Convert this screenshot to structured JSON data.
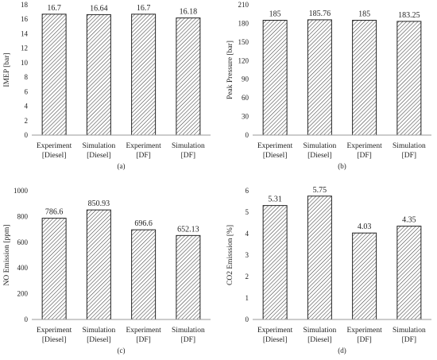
{
  "chart_data": [
    {
      "type": "bar",
      "panel_label": "(a)",
      "categories": [
        "Experiment [Diesel]",
        "Simulation [Diesel]",
        "Experiment [DF]",
        "Simulation [DF]"
      ],
      "values": [
        16.7,
        16.64,
        16.7,
        16.18
      ],
      "value_labels": [
        "16.7",
        "16.64",
        "16.7",
        "16.18"
      ],
      "ylabel": "IMEP [bar]",
      "ylim": [
        0,
        18
      ],
      "yticks": [
        0,
        2,
        4,
        6,
        8,
        10,
        12,
        14,
        16,
        18
      ],
      "grid": false,
      "fill": "diagonal-hatch"
    },
    {
      "type": "bar",
      "panel_label": "(b)",
      "categories": [
        "Experiment [Diesel]",
        "Simulation [Diesel]",
        "Experiment [DF]",
        "Simulation [DF]"
      ],
      "values": [
        185,
        185.76,
        185,
        183.25
      ],
      "value_labels": [
        "185",
        "185.76",
        "185",
        "183.25"
      ],
      "ylabel": "Peak Pressure [bar]",
      "ylim": [
        0,
        210
      ],
      "yticks": [
        0,
        30,
        60,
        90,
        120,
        150,
        180,
        210
      ],
      "grid": false,
      "fill": "diagonal-hatch"
    },
    {
      "type": "bar",
      "panel_label": "(c)",
      "categories": [
        "Experiment [Diesel]",
        "Simulation [Diesel]",
        "Experiment [DF]",
        "Simulation [DF]"
      ],
      "values": [
        786.6,
        850.93,
        696.6,
        652.13
      ],
      "value_labels": [
        "786.6",
        "850.93",
        "696.6",
        "652.13"
      ],
      "ylabel": "NO Emission [ppm]",
      "ylim": [
        0,
        1000
      ],
      "yticks": [
        0,
        200,
        400,
        600,
        800,
        1000
      ],
      "grid": false,
      "fill": "diagonal-hatch"
    },
    {
      "type": "bar",
      "panel_label": "(d)",
      "categories": [
        "Experiment [Diesel]",
        "Simulation [Diesel]",
        "Experiment [DF]",
        "Simulation [DF]"
      ],
      "values": [
        5.31,
        5.75,
        4.03,
        4.35
      ],
      "value_labels": [
        "5.31",
        "5.75",
        "4.03",
        "4.35"
      ],
      "ylabel": "CO2 Emisssion [%]",
      "ylim": [
        0,
        6
      ],
      "yticks": [
        0,
        1,
        2,
        3,
        4,
        5,
        6
      ],
      "grid": false,
      "fill": "diagonal-hatch"
    }
  ]
}
